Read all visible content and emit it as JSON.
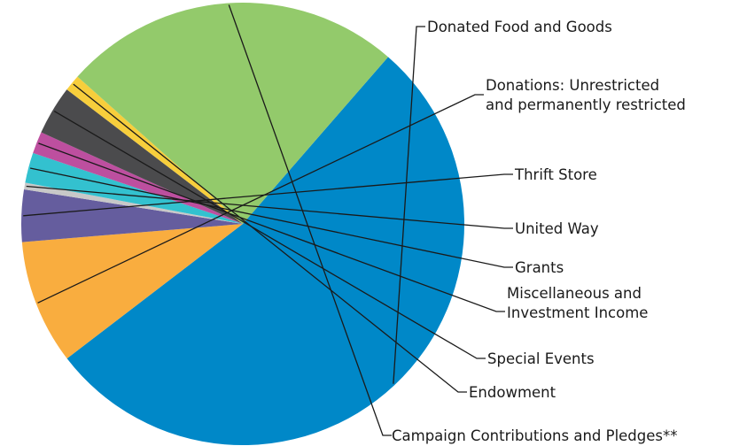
{
  "chart_data": {
    "type": "pie",
    "title": "",
    "start_angle_deg": 49,
    "direction": "clockwise",
    "slices": [
      {
        "label": "Donated Food and Goods",
        "lines": [
          "Donated Food and Goods"
        ],
        "value": 53.2,
        "color": "#0088c8"
      },
      {
        "label": "Donations: Unrestricted and permanently restricted",
        "lines": [
          "Donations: Unrestricted",
          "and permanently restricted"
        ],
        "value": 9.1,
        "color": "#f9ad3f"
      },
      {
        "label": "Thrift Store",
        "lines": [
          "Thrift Store"
        ],
        "value": 3.8,
        "color": "#655d9e"
      },
      {
        "label": "United Way",
        "lines": [
          "United Way"
        ],
        "value": 0.5,
        "color": "#c8c8c8"
      },
      {
        "label": "Grants",
        "lines": [
          "Grants"
        ],
        "value": 2.2,
        "color": "#33c1cf"
      },
      {
        "label": "Miscellaneous and Investment Income",
        "lines": [
          "Miscellaneous and",
          "Investment Income"
        ],
        "value": 1.6,
        "color": "#bd4f9f"
      },
      {
        "label": "Special Events",
        "lines": [
          "Special Events"
        ],
        "value": 3.6,
        "color": "#4b4b4d"
      },
      {
        "label": "Endowment",
        "lines": [
          "Endowment"
        ],
        "value": 1.2,
        "color": "#f7ce3c"
      },
      {
        "label": "Campaign Contributions and Pledges**",
        "lines": [
          "Campaign Contributions and Pledges**"
        ],
        "value": 24.8,
        "color": "#93ca6b"
      }
    ]
  }
}
